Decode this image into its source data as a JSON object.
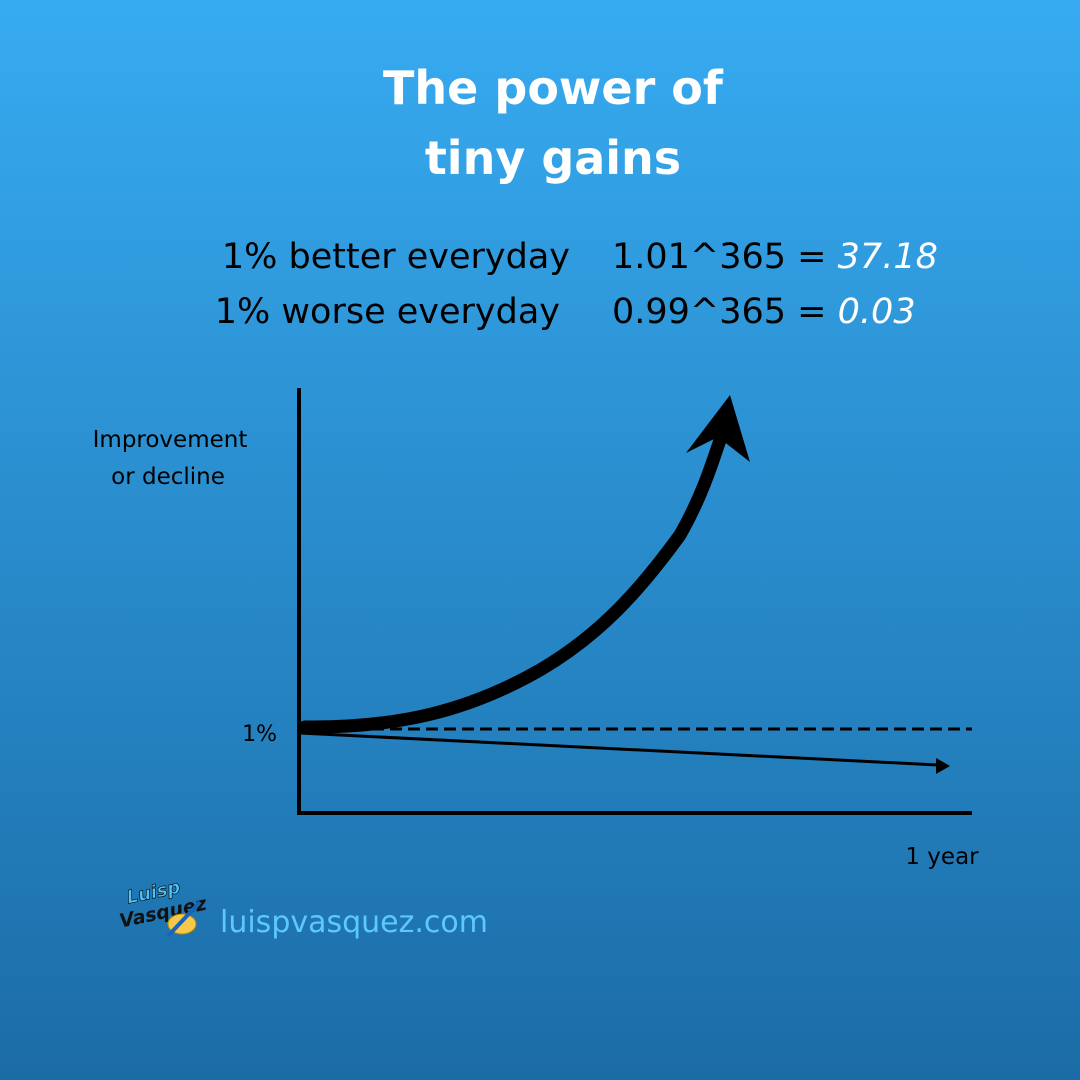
{
  "header": {
    "title_lines": [
      "The power of",
      "tiny gains"
    ]
  },
  "rows": [
    {
      "label": "1% better everyday",
      "formula": "1.01^365 =",
      "result": "37.18"
    },
    {
      "label": "1% worse everyday",
      "formula": "0.99^365 =",
      "result": "0.03"
    }
  ],
  "graph": {
    "y_axis_label_lines": [
      "Improvement",
      "or decline"
    ],
    "baseline_label": "1%",
    "x_axis_label": "1 year"
  },
  "footer": {
    "logo_lines": [
      "Luisp",
      "Vasquez"
    ],
    "url": "luispvasquez.com"
  }
}
